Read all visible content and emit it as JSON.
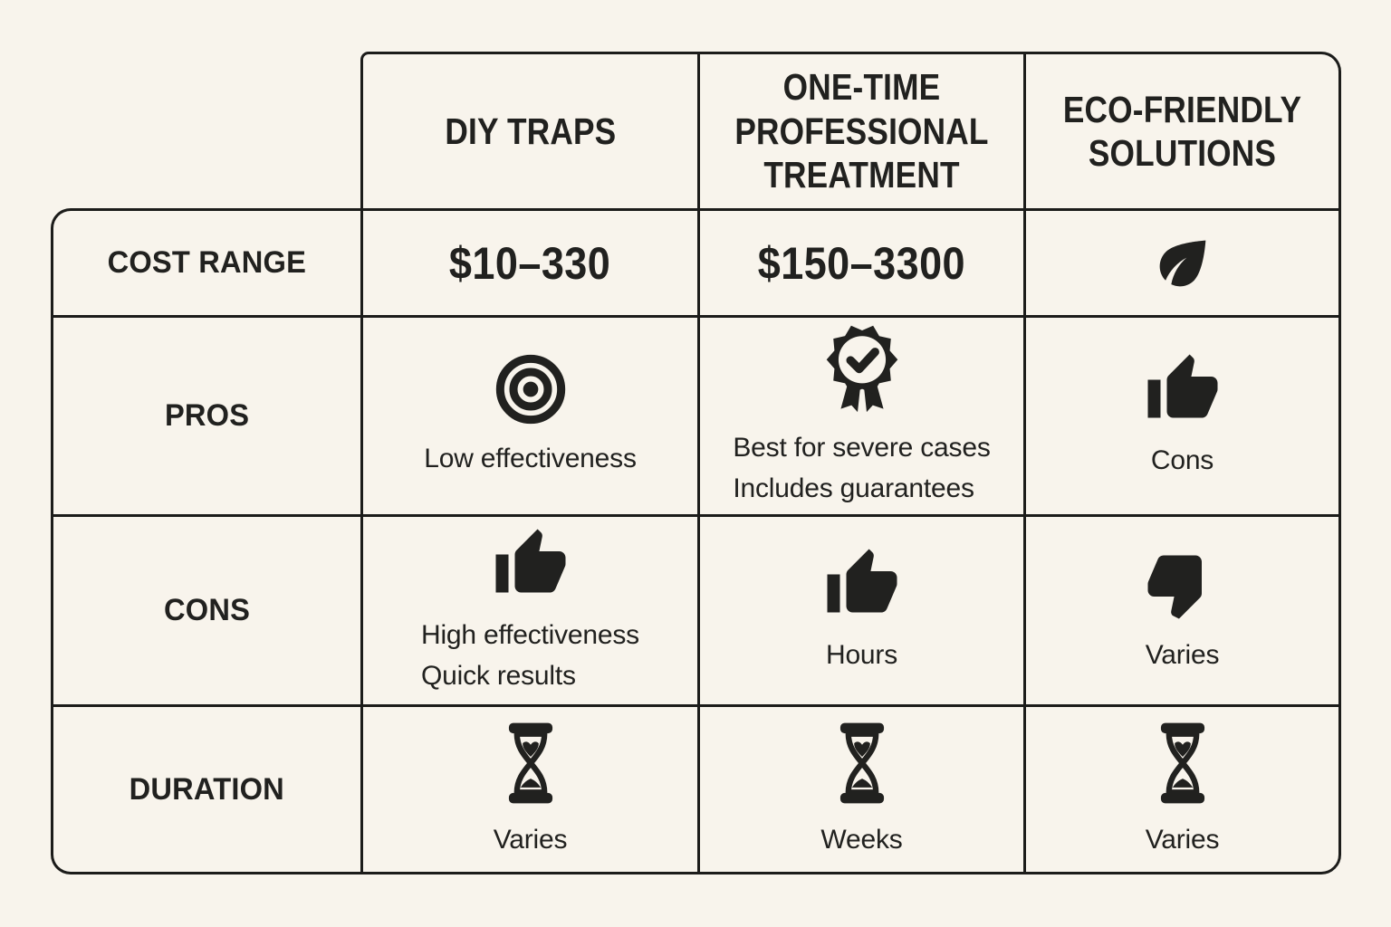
{
  "page": {
    "background": "#f8f4ec",
    "border_color": "#1c1c1a",
    "ink_color": "#21211f"
  },
  "table": {
    "column_headers": [
      {
        "label": "DIY TRAPS"
      },
      {
        "label": "ONE-TIME PROFESSIONAL TREATMENT"
      },
      {
        "label": "ECO-FRIENDLY SOLUTIONS"
      }
    ],
    "rows": [
      {
        "label": "COST RANGE",
        "cells": [
          {
            "value": "$10–330"
          },
          {
            "value": "$150–3300"
          },
          {
            "icon": "leaf-icon"
          }
        ]
      },
      {
        "label": "PROS",
        "cells": [
          {
            "icon": "target-icon",
            "lines": [
              "Low effectiveness"
            ]
          },
          {
            "icon": "award-check-icon",
            "lines": [
              "Best for severe cases",
              "Includes guarantees"
            ]
          },
          {
            "icon": "thumbs-up-icon",
            "lines": [
              "Cons"
            ]
          }
        ]
      },
      {
        "label": "CONS",
        "cells": [
          {
            "icon": "thumbs-up-icon",
            "lines": [
              "High effectiveness",
              "Quick results"
            ]
          },
          {
            "icon": "thumbs-up-icon",
            "lines": [
              "Hours"
            ]
          },
          {
            "icon": "thumbs-down-icon",
            "lines": [
              "Varies"
            ]
          }
        ]
      },
      {
        "label": "DURATION",
        "cells": [
          {
            "icon": "hourglass-icon",
            "lines": [
              "Varies"
            ]
          },
          {
            "icon": "hourglass-icon",
            "lines": [
              "Weeks"
            ]
          },
          {
            "icon": "hourglass-icon",
            "lines": [
              "Varies"
            ]
          }
        ]
      }
    ]
  },
  "chart_data": {
    "type": "table",
    "title": "",
    "columns": [
      "",
      "DIY TRAPS",
      "ONE-TIME PROFESSIONAL TREATMENT",
      "ECO-FRIENDLY SOLUTIONS"
    ],
    "rows": [
      [
        "COST RANGE",
        "$10–330",
        "$150–3300",
        "leaf-icon"
      ],
      [
        "PROS",
        "Low effectiveness",
        "Best for severe cases; Includes guarantees",
        "Cons"
      ],
      [
        "CONS",
        "High effectiveness; Quick results",
        "Hours",
        "Varies"
      ],
      [
        "DURATION",
        "Varies",
        "Weeks",
        "Varies"
      ]
    ]
  }
}
